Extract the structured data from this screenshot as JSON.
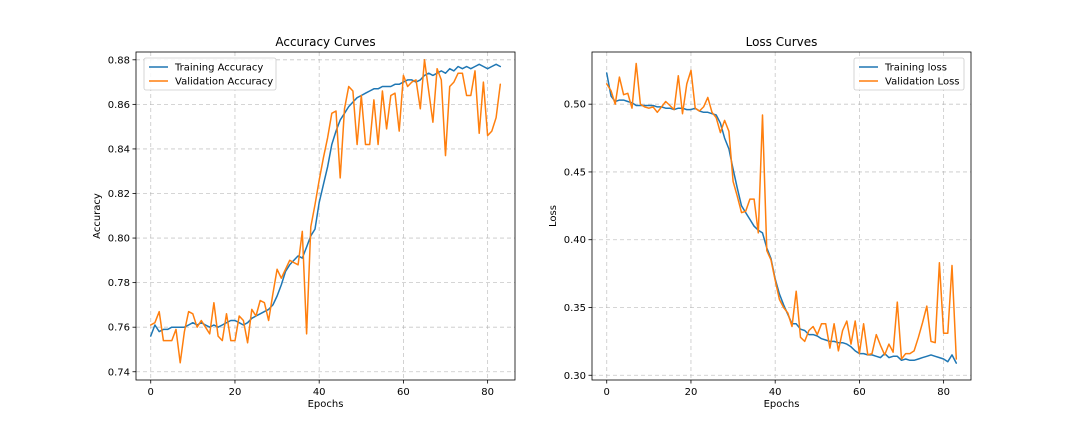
{
  "chart_data": [
    {
      "type": "line",
      "title": "Accuracy Curves",
      "xlabel": "Epochs",
      "ylabel": "Accuracy",
      "xlim": [
        -3.5,
        86.5
      ],
      "ylim": [
        0.7363,
        0.8835
      ],
      "xticks": [
        0,
        20,
        40,
        60,
        80
      ],
      "xtick_labels": [
        "0",
        "20",
        "40",
        "60",
        "80"
      ],
      "yticks": [
        0.74,
        0.76,
        0.78,
        0.8,
        0.82,
        0.84,
        0.86,
        0.88
      ],
      "ytick_labels": [
        "0.74",
        "0.76",
        "0.78",
        "0.80",
        "0.82",
        "0.84",
        "0.86",
        "0.88"
      ],
      "grid": true,
      "legend_position": "upper-left",
      "series": [
        {
          "name": "Training Accuracy",
          "color": "#1f77b4",
          "values": [
            0.756,
            0.761,
            0.758,
            0.759,
            0.759,
            0.76,
            0.76,
            0.76,
            0.76,
            0.761,
            0.762,
            0.761,
            0.762,
            0.761,
            0.76,
            0.761,
            0.76,
            0.761,
            0.762,
            0.763,
            0.763,
            0.762,
            0.761,
            0.762,
            0.764,
            0.765,
            0.766,
            0.767,
            0.768,
            0.77,
            0.774,
            0.779,
            0.785,
            0.788,
            0.79,
            0.792,
            0.791,
            0.796,
            0.801,
            0.804,
            0.816,
            0.824,
            0.832,
            0.842,
            0.848,
            0.853,
            0.856,
            0.859,
            0.861,
            0.863,
            0.864,
            0.865,
            0.866,
            0.867,
            0.867,
            0.868,
            0.868,
            0.868,
            0.869,
            0.869,
            0.87,
            0.871,
            0.871,
            0.87,
            0.871,
            0.873,
            0.874,
            0.873,
            0.874,
            0.875,
            0.874,
            0.876,
            0.875,
            0.877,
            0.876,
            0.877,
            0.876,
            0.877,
            0.878,
            0.877,
            0.876,
            0.877,
            0.878,
            0.877
          ]
        },
        {
          "name": "Validation Accuracy",
          "color": "#ff7f0e",
          "values": [
            0.761,
            0.762,
            0.767,
            0.754,
            0.754,
            0.754,
            0.759,
            0.744,
            0.758,
            0.767,
            0.766,
            0.76,
            0.763,
            0.76,
            0.757,
            0.771,
            0.756,
            0.754,
            0.766,
            0.754,
            0.754,
            0.765,
            0.763,
            0.753,
            0.768,
            0.765,
            0.772,
            0.771,
            0.763,
            0.775,
            0.786,
            0.782,
            0.786,
            0.79,
            0.789,
            0.788,
            0.803,
            0.757,
            0.805,
            0.815,
            0.826,
            0.836,
            0.845,
            0.856,
            0.857,
            0.827,
            0.858,
            0.868,
            0.866,
            0.842,
            0.864,
            0.842,
            0.842,
            0.862,
            0.842,
            0.866,
            0.849,
            0.864,
            0.865,
            0.848,
            0.873,
            0.868,
            0.87,
            0.871,
            0.858,
            0.88,
            0.866,
            0.852,
            0.876,
            0.871,
            0.837,
            0.868,
            0.87,
            0.874,
            0.874,
            0.864,
            0.864,
            0.875,
            0.847,
            0.87,
            0.846,
            0.848,
            0.854,
            0.869
          ]
        }
      ]
    },
    {
      "type": "line",
      "title": "Loss Curves",
      "xlabel": "Epochs",
      "ylabel": "Loss",
      "xlim": [
        -3.5,
        86.5
      ],
      "ylim": [
        0.2965,
        0.5385
      ],
      "xticks": [
        0,
        20,
        40,
        60,
        80
      ],
      "xtick_labels": [
        "0",
        "20",
        "40",
        "60",
        "80"
      ],
      "yticks": [
        0.3,
        0.35,
        0.4,
        0.45,
        0.5
      ],
      "ytick_labels": [
        "0.30",
        "0.35",
        "0.40",
        "0.45",
        "0.50"
      ],
      "grid": true,
      "legend_position": "upper-right",
      "series": [
        {
          "name": "Training loss",
          "color": "#1f77b4",
          "values": [
            0.523,
            0.506,
            0.502,
            0.503,
            0.503,
            0.502,
            0.501,
            0.499,
            0.499,
            0.499,
            0.499,
            0.499,
            0.498,
            0.498,
            0.497,
            0.497,
            0.496,
            0.497,
            0.497,
            0.496,
            0.496,
            0.497,
            0.495,
            0.494,
            0.494,
            0.493,
            0.492,
            0.486,
            0.475,
            0.467,
            0.452,
            0.438,
            0.425,
            0.42,
            0.415,
            0.41,
            0.407,
            0.405,
            0.394,
            0.386,
            0.371,
            0.36,
            0.352,
            0.345,
            0.338,
            0.338,
            0.334,
            0.333,
            0.33,
            0.33,
            0.329,
            0.327,
            0.326,
            0.325,
            0.325,
            0.324,
            0.324,
            0.323,
            0.321,
            0.318,
            0.316,
            0.316,
            0.315,
            0.315,
            0.314,
            0.313,
            0.316,
            0.313,
            0.314,
            0.314,
            0.311,
            0.312,
            0.311,
            0.311,
            0.312,
            0.313,
            0.314,
            0.315,
            0.314,
            0.313,
            0.312,
            0.31,
            0.315,
            0.309
          ]
        },
        {
          "name": "Validation Loss",
          "color": "#ff7f0e",
          "values": [
            0.515,
            0.51,
            0.5,
            0.52,
            0.507,
            0.508,
            0.497,
            0.53,
            0.5,
            0.498,
            0.497,
            0.498,
            0.494,
            0.498,
            0.502,
            0.499,
            0.496,
            0.521,
            0.493,
            0.515,
            0.525,
            0.497,
            0.495,
            0.498,
            0.505,
            0.494,
            0.49,
            0.479,
            0.488,
            0.48,
            0.443,
            0.432,
            0.42,
            0.421,
            0.43,
            0.43,
            0.405,
            0.492,
            0.392,
            0.385,
            0.37,
            0.356,
            0.35,
            0.346,
            0.336,
            0.362,
            0.328,
            0.325,
            0.333,
            0.336,
            0.33,
            0.338,
            0.338,
            0.32,
            0.338,
            0.318,
            0.333,
            0.34,
            0.323,
            0.34,
            0.316,
            0.338,
            0.315,
            0.316,
            0.33,
            0.322,
            0.315,
            0.323,
            0.317,
            0.354,
            0.312,
            0.316,
            0.316,
            0.318,
            0.328,
            0.339,
            0.351,
            0.325,
            0.324,
            0.383,
            0.331,
            0.331,
            0.381,
            0.312
          ]
        }
      ]
    }
  ]
}
